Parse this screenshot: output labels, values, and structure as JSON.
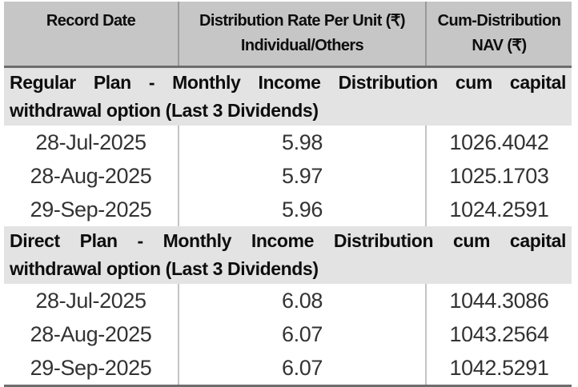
{
  "document": {
    "colors": {
      "header_bg": "#c6c6c6",
      "section_bg": "#e3e3e3",
      "rule_dark": "#6d6d6d",
      "divider_header": "#9a9a9a",
      "divider_body": "#c4c4c4",
      "text_dark": "#0d0d0d",
      "text_data": "#333333"
    },
    "header": {
      "col1": {
        "line1": "Record Date",
        "line2": ""
      },
      "col2": {
        "line1": "Distribution Rate Per Unit (₹)",
        "line2": "Individual/Others"
      },
      "col3": {
        "line1": "Cum-Distribution",
        "line2": "NAV (₹)"
      }
    },
    "sections": [
      {
        "title_line1": "Regular Plan - Monthly Income Distribution cum capital",
        "title_line2": "withdrawal option (Last 3 Dividends)",
        "rows": [
          {
            "date": "28-Jul-2025",
            "rate": "5.98",
            "nav": "1026.4042"
          },
          {
            "date": "28-Aug-2025",
            "rate": "5.97",
            "nav": "1025.1703"
          },
          {
            "date": "29-Sep-2025",
            "rate": "5.96",
            "nav": "1024.2591"
          }
        ]
      },
      {
        "title_line1": "Direct Plan - Monthly Income Distribution cum capital",
        "title_line2": "withdrawal option (Last 3 Dividends)",
        "rows": [
          {
            "date": "28-Jul-2025",
            "rate": "6.08",
            "nav": "1044.3086"
          },
          {
            "date": "28-Aug-2025",
            "rate": "6.07",
            "nav": "1043.2564"
          },
          {
            "date": "29-Sep-2025",
            "rate": "6.07",
            "nav": "1042.5291"
          }
        ]
      }
    ]
  }
}
